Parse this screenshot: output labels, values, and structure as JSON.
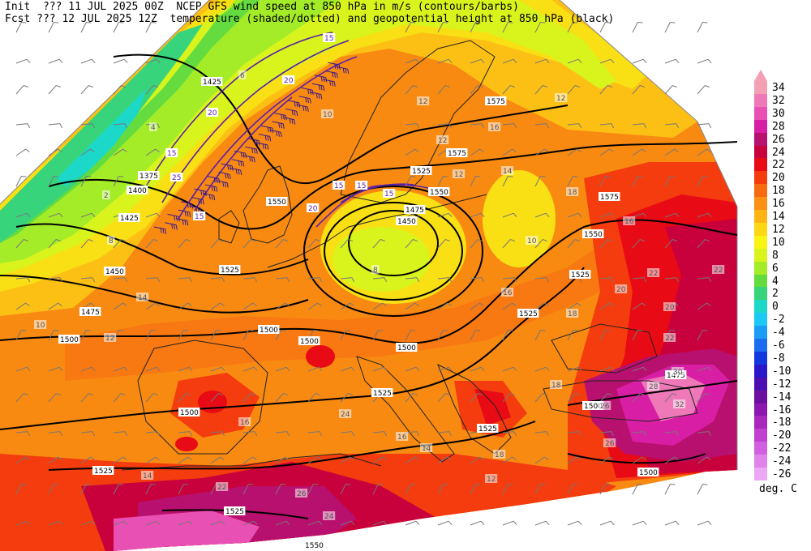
{
  "header": {
    "init_line": "Init  ??? 11 JUL 2025 00Z  NCEP GFS wind speed at 850 hPa in m/s (contours/barbs)",
    "fcst_line": "Fcst ??? 12 JUL 2025 12Z  temperature (shaded/dotted) and geopotential height at 850 hPa (black)"
  },
  "legend": {
    "unit": "deg. C",
    "levels": [
      {
        "label": "34",
        "color": "#f4a0b4"
      },
      {
        "label": "32",
        "color": "#ee78b8"
      },
      {
        "label": "30",
        "color": "#e850b4"
      },
      {
        "label": "28",
        "color": "#d81ea4"
      },
      {
        "label": "26",
        "color": "#b8106e"
      },
      {
        "label": "24",
        "color": "#c8003c"
      },
      {
        "label": "22",
        "color": "#e80a14"
      },
      {
        "label": "20",
        "color": "#f43c0e"
      },
      {
        "label": "18",
        "color": "#f86a10"
      },
      {
        "label": "16",
        "color": "#fa9014"
      },
      {
        "label": "14",
        "color": "#fcb414"
      },
      {
        "label": "12",
        "color": "#fcd814"
      },
      {
        "label": "10",
        "color": "#f8f414"
      },
      {
        "label": "8",
        "color": "#d8f41c"
      },
      {
        "label": "6",
        "color": "#a4ec28"
      },
      {
        "label": "4",
        "color": "#64dc40"
      },
      {
        "label": "2",
        "color": "#38d47c"
      },
      {
        "label": "0",
        "color": "#1cd8c8"
      },
      {
        "label": "-2",
        "color": "#1cc8f4"
      },
      {
        "label": "-4",
        "color": "#1c9cf4"
      },
      {
        "label": "-6",
        "color": "#1c6cf0"
      },
      {
        "label": "-8",
        "color": "#1438e0"
      },
      {
        "label": "-10",
        "color": "#2818c8"
      },
      {
        "label": "-12",
        "color": "#4c10b0"
      },
      {
        "label": "-14",
        "color": "#6c10a0"
      },
      {
        "label": "-16",
        "color": "#8c18b0"
      },
      {
        "label": "-18",
        "color": "#a828bc"
      },
      {
        "label": "-20",
        "color": "#c040d0"
      },
      {
        "label": "-22",
        "color": "#d060e0"
      },
      {
        "label": "-24",
        "color": "#e084ec"
      },
      {
        "label": "-26",
        "color": "#eca8f4"
      }
    ]
  },
  "height_labels": [
    "1425",
    "1375",
    "1400",
    "1425",
    "1450",
    "1475",
    "1500",
    "1525",
    "1550",
    "1575",
    "1575",
    "1575",
    "1550",
    "1525",
    "1550",
    "1500",
    "1475",
    "1450",
    "1525",
    "1525",
    "1500",
    "1500",
    "1525",
    "1500",
    "1475",
    "1500",
    "1525",
    "1525",
    "1525",
    "1550",
    "1500"
  ],
  "wind_labels": [
    "15",
    "20",
    "20",
    "15",
    "25",
    "15",
    "15",
    "15",
    "15",
    "20"
  ],
  "temp_labels": [
    "4",
    "2",
    "8",
    "6",
    "10",
    "12",
    "12",
    "14",
    "12",
    "16",
    "14",
    "18",
    "16",
    "12",
    "10",
    "8",
    "10",
    "12",
    "16",
    "18",
    "20",
    "22",
    "22",
    "22",
    "26",
    "28",
    "30",
    "32",
    "20",
    "18",
    "26",
    "24",
    "22",
    "26",
    "24",
    "16",
    "16",
    "14",
    "18",
    "12",
    "14"
  ]
}
